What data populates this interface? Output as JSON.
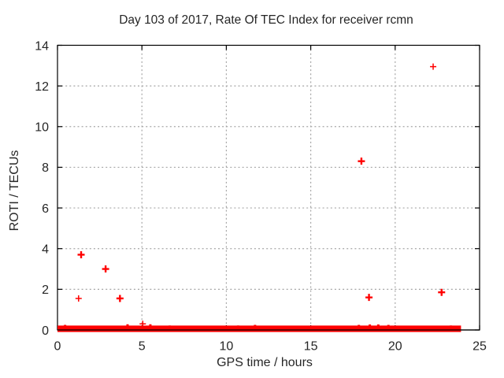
{
  "chart_data": {
    "type": "scatter",
    "title": "Day 103 of 2017, Rate Of TEC Index for receiver rcmn",
    "xlabel": "GPS time / hours",
    "ylabel": "ROTI / TECUs",
    "xlim": [
      0,
      25
    ],
    "ylim": [
      0,
      14
    ],
    "xticks": [
      0,
      5,
      10,
      15,
      20,
      25
    ],
    "yticks": [
      0,
      2,
      4,
      6,
      8,
      10,
      12,
      14
    ],
    "grid": "dotted",
    "legend": "none",
    "marker": "plus",
    "outliers": [
      {
        "x": 1.25,
        "y": 1.55,
        "weight": 1
      },
      {
        "x": 1.4,
        "y": 3.7,
        "weight": 2
      },
      {
        "x": 2.85,
        "y": 3.0,
        "weight": 2
      },
      {
        "x": 3.7,
        "y": 1.55,
        "weight": 2
      },
      {
        "x": 5.05,
        "y": 0.3,
        "weight": 1
      },
      {
        "x": 18.0,
        "y": 8.3,
        "weight": 2
      },
      {
        "x": 18.45,
        "y": 1.6,
        "weight": 2
      },
      {
        "x": 22.25,
        "y": 12.95,
        "weight": 1
      },
      {
        "x": 22.75,
        "y": 1.85,
        "weight": 2
      }
    ],
    "baseline_band": {
      "description": "dense overlapping plus markers at ROTI ~0 across the whole day",
      "x_start": 0,
      "x_end": 23.9,
      "y_min": 0,
      "y_max": 0.1,
      "bumps": [
        {
          "x": 0.45,
          "y": 0.25
        },
        {
          "x": 4.15,
          "y": 0.28
        },
        {
          "x": 5.5,
          "y": 0.28
        },
        {
          "x": 6.65,
          "y": 0.22
        },
        {
          "x": 10.7,
          "y": 0.22
        },
        {
          "x": 11.7,
          "y": 0.25
        },
        {
          "x": 17.85,
          "y": 0.25
        },
        {
          "x": 18.5,
          "y": 0.27
        },
        {
          "x": 19.0,
          "y": 0.27
        },
        {
          "x": 19.6,
          "y": 0.25
        },
        {
          "x": 21.3,
          "y": 0.2
        },
        {
          "x": 23.3,
          "y": 0.22
        }
      ]
    },
    "colors": {
      "marker": "#ff0000",
      "grid": "#a6a6a6",
      "axis": "#000000",
      "text": "#262626",
      "background": "#ffffff"
    }
  }
}
